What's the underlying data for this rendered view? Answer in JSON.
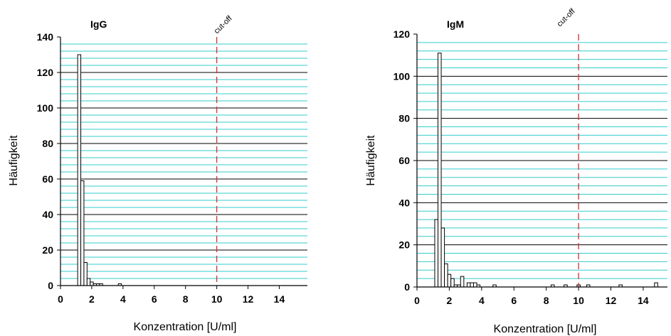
{
  "chart_data": [
    {
      "type": "bar",
      "title": "IgG",
      "xlabel": "Konzentration [U/ml]",
      "ylabel": "Häufigkeit",
      "xlim": [
        0,
        15.8
      ],
      "ylim": [
        0,
        140
      ],
      "xticks": [
        0,
        2,
        4,
        6,
        8,
        10,
        12,
        14
      ],
      "yticks": [
        0,
        20,
        40,
        60,
        80,
        100,
        120,
        140
      ],
      "bar_width": 0.2,
      "cutoff": {
        "value": 10,
        "label": "cut-off",
        "color": "#cc3333"
      },
      "grid": {
        "major_color": "#000000",
        "minor_color": "#33cccc"
      },
      "bar_color": "#ffffff",
      "x": [
        1.2,
        1.4,
        1.6,
        1.8,
        2.0,
        2.2,
        2.4,
        2.6,
        3.8
      ],
      "values": [
        130,
        59,
        13,
        4,
        2,
        1,
        1,
        1,
        1
      ]
    },
    {
      "type": "bar",
      "title": "IgM",
      "xlabel": "Konzentration [U/ml]",
      "ylabel": "Häufigkeit",
      "xlim": [
        0,
        15.5
      ],
      "ylim": [
        0,
        120
      ],
      "xticks": [
        0,
        2,
        4,
        6,
        8,
        10,
        12,
        14
      ],
      "yticks": [
        0,
        20,
        40,
        60,
        80,
        100,
        120
      ],
      "bar_width": 0.2,
      "cutoff": {
        "value": 10,
        "label": "cut-off",
        "color": "#cc3333"
      },
      "grid": {
        "major_color": "#000000",
        "minor_color": "#33cccc"
      },
      "bar_color": "#ffffff",
      "x": [
        1.2,
        1.4,
        1.6,
        1.8,
        2.0,
        2.2,
        2.4,
        2.6,
        2.8,
        3.2,
        3.4,
        3.6,
        3.8,
        4.8,
        8.4,
        9.2,
        10.0,
        10.6,
        12.6,
        14.8
      ],
      "values": [
        32,
        111,
        28,
        11,
        6,
        4,
        1,
        1,
        5,
        2,
        2,
        2,
        1,
        1,
        1,
        1,
        1,
        1,
        1,
        2
      ]
    }
  ]
}
